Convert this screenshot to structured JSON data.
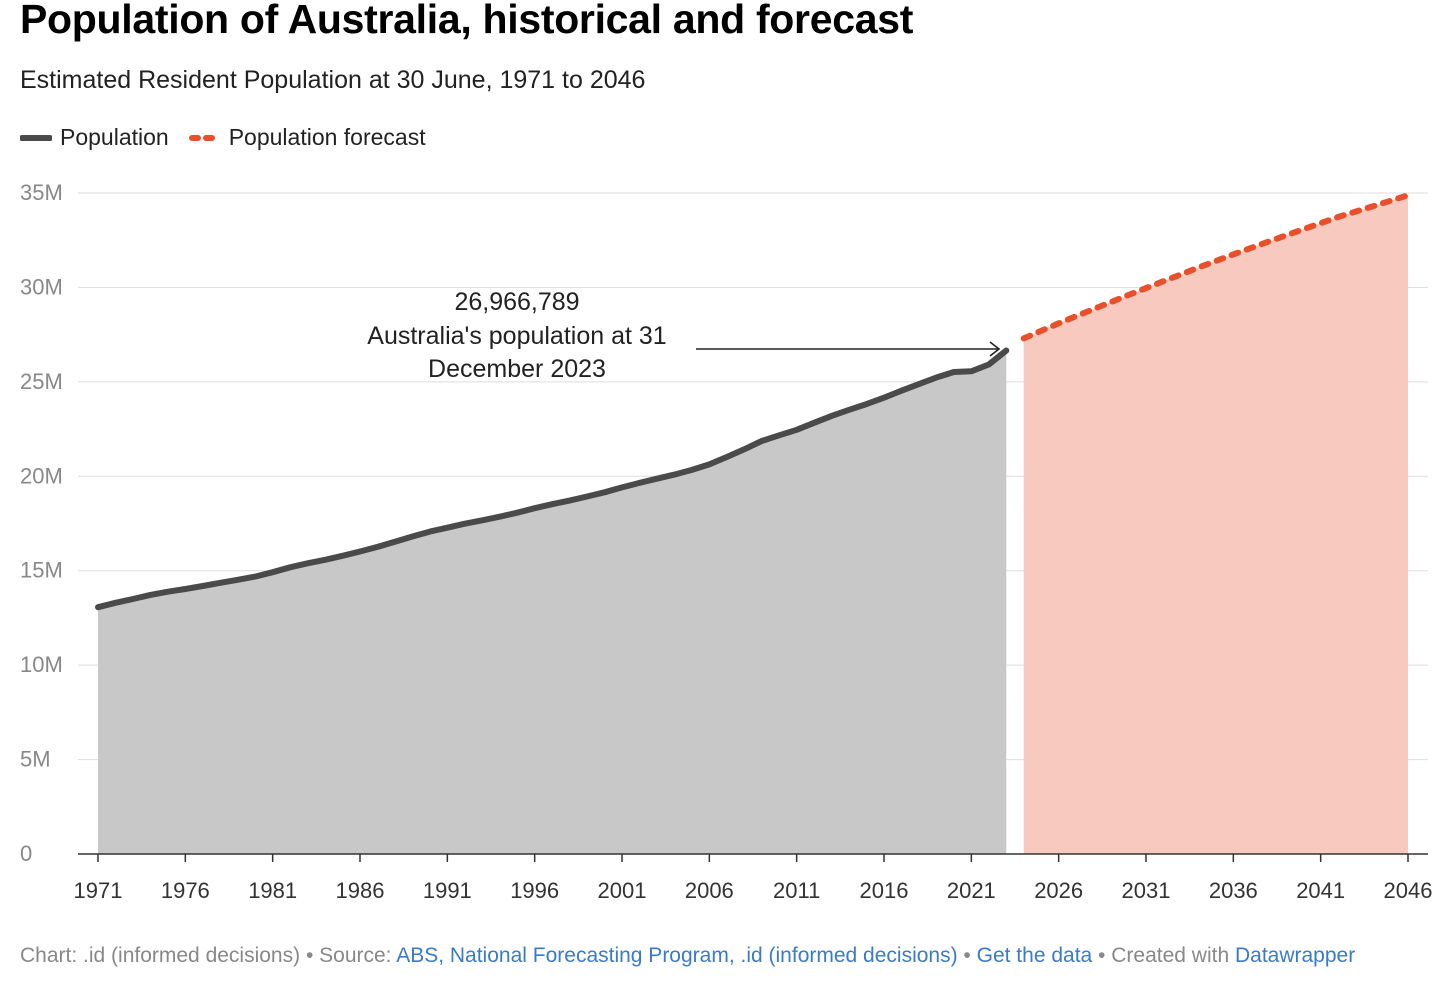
{
  "title": "Population of Australia, historical and forecast",
  "subtitle": "Estimated Resident Population at 30 June, 1971 to 2046",
  "legend": [
    {
      "label": "Population",
      "color": "#4a4a4a",
      "style": "solid"
    },
    {
      "label": "Population forecast",
      "color": "#e8502c",
      "style": "dotted"
    }
  ],
  "annotation": {
    "lines": [
      "26,966,789",
      "Australia's population at 31",
      "December 2023"
    ],
    "target_year": 2023.5,
    "target_value": 26.97
  },
  "footer": {
    "chart_prefix": "Chart: .id (informed decisions)",
    "sep1": " • Source: ",
    "source_link": "ABS, National Forecasting Program, .id (informed decisions)",
    "sep2": " • ",
    "data_link": "Get the data",
    "sep3": " • Created with ",
    "tool_link": "Datawrapper"
  },
  "chart_data": {
    "type": "area",
    "xlim": [
      1971,
      2046
    ],
    "ylim": [
      0,
      35
    ],
    "y_unit": "M",
    "y_ticks": [
      0,
      5,
      10,
      15,
      20,
      25,
      30,
      35
    ],
    "y_tick_labels": [
      "0",
      "5M",
      "10M",
      "15M",
      "20M",
      "25M",
      "30M",
      "35M"
    ],
    "x_ticks": [
      1971,
      1976,
      1981,
      1986,
      1991,
      1996,
      2001,
      2006,
      2011,
      2016,
      2021,
      2026,
      2031,
      2036,
      2041,
      2046
    ],
    "x_tick_labels": [
      "1971",
      "1976",
      "1981",
      "1986",
      "1991",
      "1996",
      "2001",
      "2006",
      "2011",
      "2016",
      "2021",
      "2026",
      "2031",
      "2036",
      "2041",
      "2046"
    ],
    "grid": true,
    "series": [
      {
        "name": "Population",
        "color": "#4a4a4a",
        "fill": "#c8c8c8",
        "x": [
          1971,
          1972,
          1973,
          1974,
          1975,
          1976,
          1977,
          1978,
          1979,
          1980,
          1981,
          1982,
          1983,
          1984,
          1985,
          1986,
          1987,
          1988,
          1989,
          1990,
          1991,
          1992,
          1993,
          1994,
          1995,
          1996,
          1997,
          1998,
          1999,
          2000,
          2001,
          2002,
          2003,
          2004,
          2005,
          2006,
          2007,
          2008,
          2009,
          2010,
          2011,
          2012,
          2013,
          2014,
          2015,
          2016,
          2017,
          2018,
          2019,
          2020,
          2021,
          2022,
          2023
        ],
        "values": [
          13.07,
          13.3,
          13.5,
          13.72,
          13.89,
          14.03,
          14.19,
          14.36,
          14.52,
          14.69,
          14.92,
          15.18,
          15.39,
          15.58,
          15.79,
          16.02,
          16.26,
          16.53,
          16.81,
          17.07,
          17.28,
          17.49,
          17.67,
          17.86,
          18.07,
          18.31,
          18.52,
          18.71,
          18.93,
          19.15,
          19.41,
          19.65,
          19.87,
          20.09,
          20.34,
          20.63,
          21.02,
          21.43,
          21.87,
          22.17,
          22.46,
          22.83,
          23.2,
          23.52,
          23.82,
          24.16,
          24.53,
          24.88,
          25.23,
          25.52,
          25.56,
          25.92,
          26.66
        ]
      },
      {
        "name": "Population forecast",
        "color": "#e8502c",
        "fill": "#f7c9bf",
        "x": [
          2024,
          2026,
          2028,
          2030,
          2032,
          2034,
          2036,
          2038,
          2040,
          2042,
          2044,
          2046
        ],
        "values": [
          27.3,
          28.1,
          28.85,
          29.6,
          30.33,
          31.05,
          31.75,
          32.42,
          33.08,
          33.73,
          34.3,
          34.88
        ]
      }
    ]
  }
}
